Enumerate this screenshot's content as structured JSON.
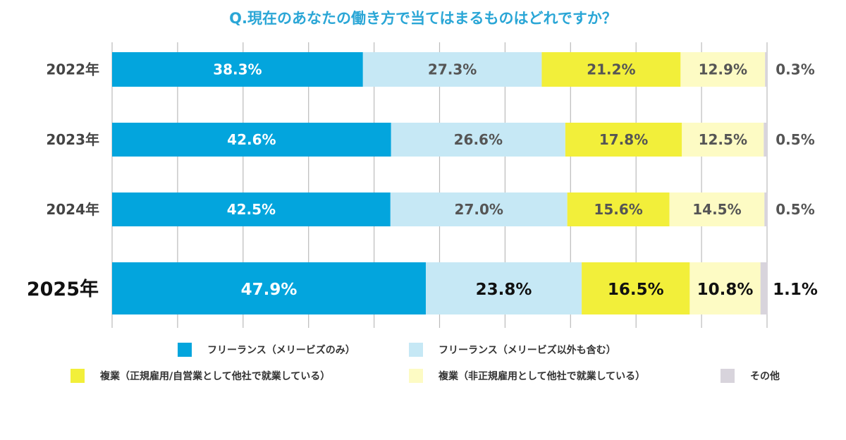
{
  "chart_data": {
    "type": "bar",
    "orientation": "horizontal-stacked-100",
    "title": "Q.現在のあなたの働き方で当てはまるものはどれですか？",
    "categories": [
      "2022年",
      "2023年",
      "2024年",
      "2025年"
    ],
    "xlim": [
      0,
      100
    ],
    "grid": true,
    "legend_position": "bottom",
    "series": [
      {
        "name": "フリーランス（メリービズのみ）",
        "color": "#03a5dd",
        "values": [
          38.3,
          42.6,
          42.5,
          47.9
        ]
      },
      {
        "name": "フリーランス（メリービズ以外も含む）",
        "color": "#c6e8f5",
        "values": [
          27.3,
          26.6,
          27.0,
          23.8
        ]
      },
      {
        "name": "複業（正規雇用/自営業として他社で就業している）",
        "color": "#f2ef3a",
        "values": [
          21.2,
          17.8,
          15.6,
          16.5
        ]
      },
      {
        "name": "複業（非正規雇用として他社で就業している）",
        "color": "#fdfbc4",
        "values": [
          12.9,
          12.5,
          14.5,
          10.8
        ]
      },
      {
        "name": "その他",
        "color": "#d8d4dc",
        "values": [
          0.3,
          0.5,
          0.5,
          1.1
        ]
      }
    ]
  }
}
